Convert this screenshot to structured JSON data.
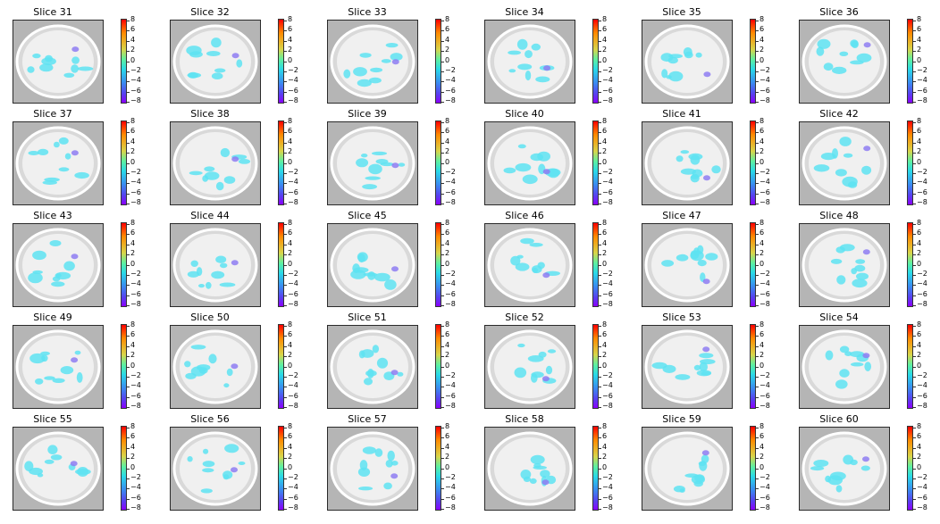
{
  "figure": {
    "panel_titles": [
      "Slice 31",
      "Slice 32",
      "Slice 33",
      "Slice 34",
      "Slice 35",
      "Slice 36",
      "Slice 37",
      "Slice 38",
      "Slice 39",
      "Slice 40",
      "Slice 41",
      "Slice 42",
      "Slice 43",
      "Slice 44",
      "Slice 45",
      "Slice 46",
      "Slice 47",
      "Slice 48",
      "Slice 49",
      "Slice 50",
      "Slice 51",
      "Slice 52",
      "Slice 53",
      "Slice 54",
      "Slice 55",
      "Slice 56",
      "Slice 57",
      "Slice 58",
      "Slice 59",
      "Slice 60"
    ],
    "colorbar_ticks": [
      "8",
      "6",
      "4",
      "2",
      "0",
      "−2",
      "−4",
      "−6",
      "−8"
    ],
    "colors": {
      "background": "#b5b5b5",
      "brain_tissue": "#f0f0f0",
      "overlay_main": "#5ee3f2",
      "overlay_strong": "#8e7cf2",
      "colormap": [
        "#ff0000",
        "#ff8a00",
        "#d8d54a",
        "#5ef0a0",
        "#29d9e8",
        "#3a8cf0",
        "#5a3df0",
        "#8a00ff"
      ]
    }
  }
}
